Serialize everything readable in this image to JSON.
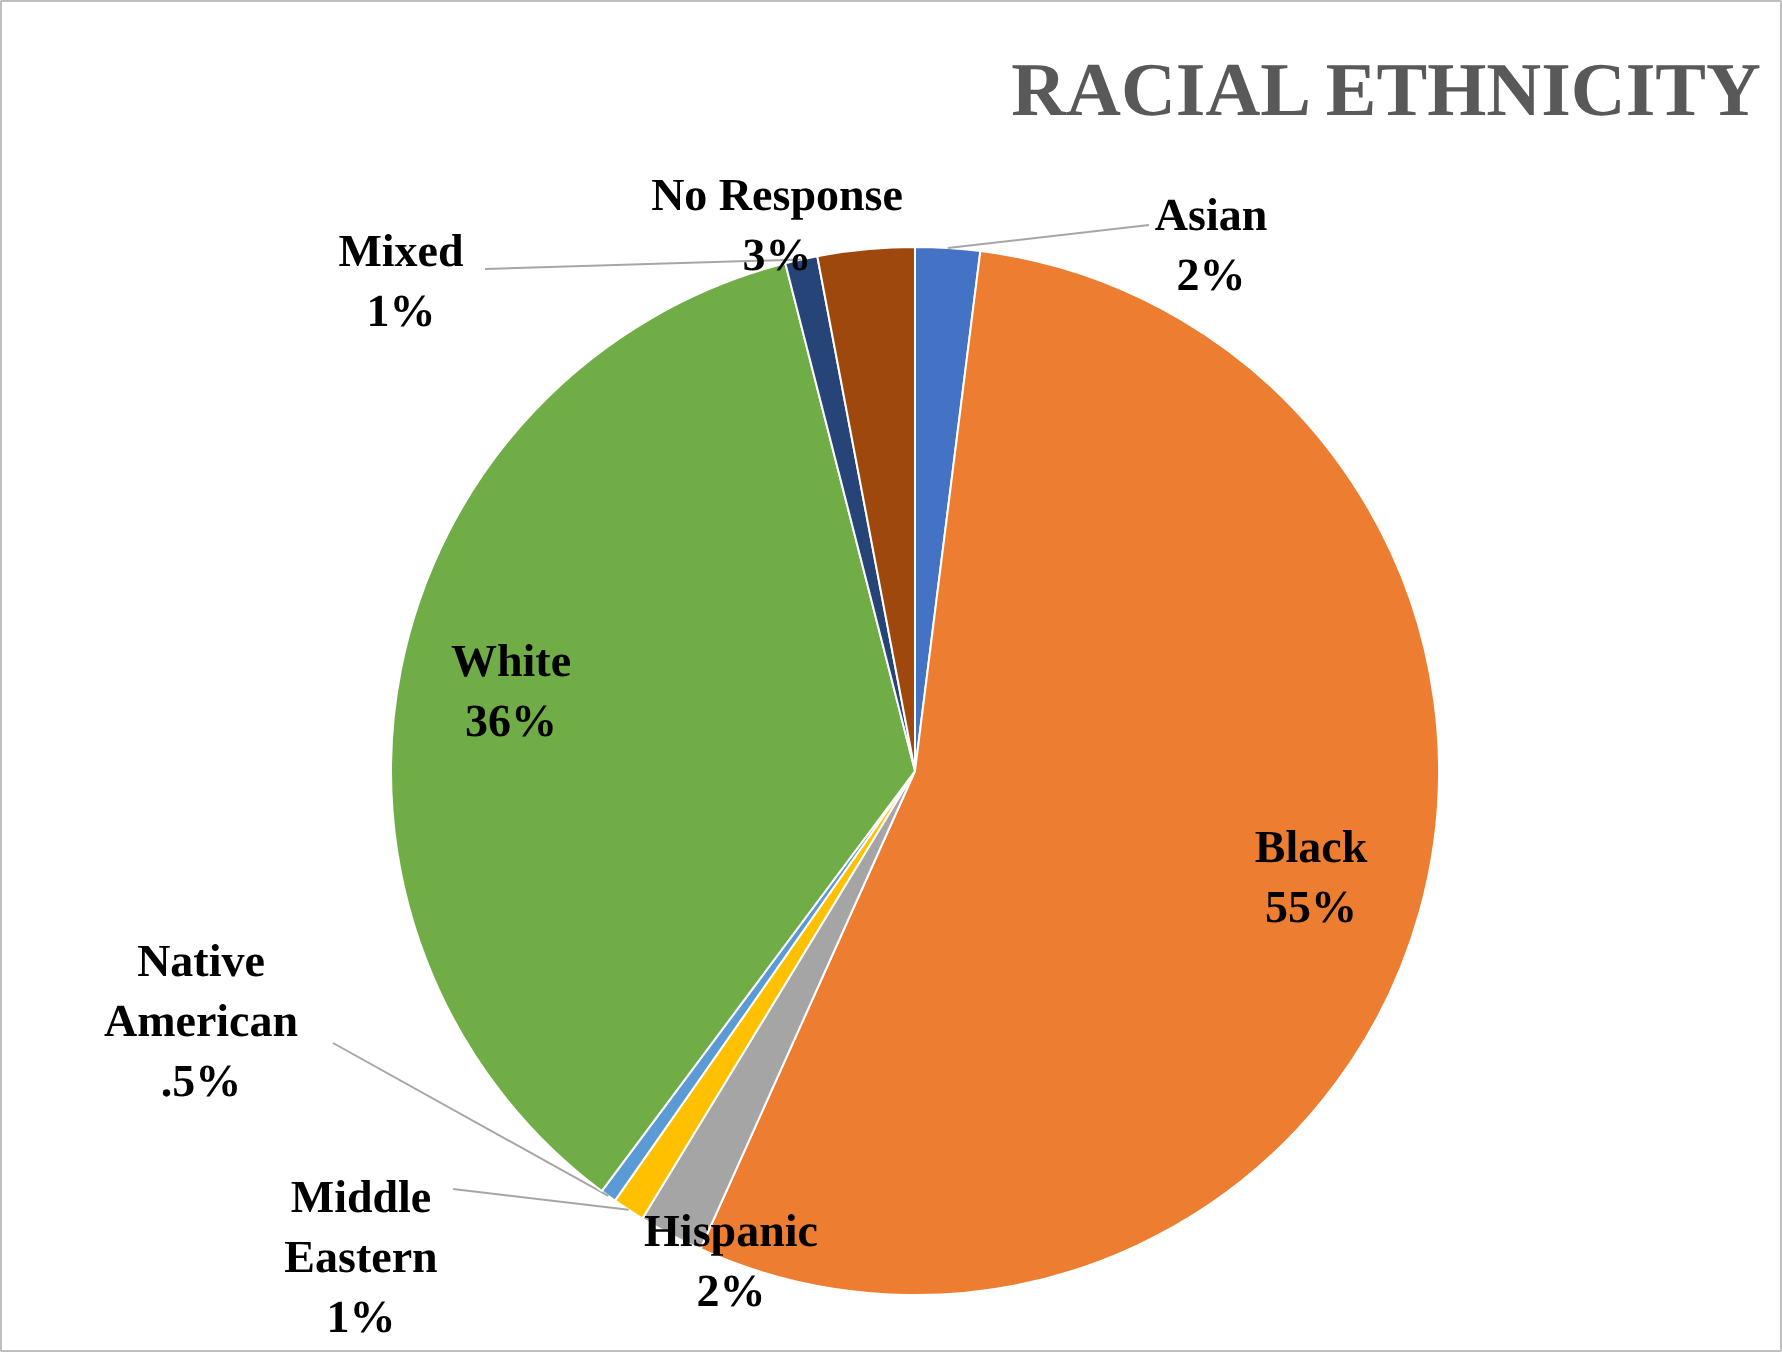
{
  "chart_data": {
    "type": "pie",
    "title": "RACIAL ETHNICITY",
    "categories": [
      "Asian",
      "Black",
      "Hispanic",
      "Middle Eastern",
      "Native American",
      "White",
      "Mixed",
      "No Response"
    ],
    "values": [
      2,
      55,
      2,
      1,
      0.5,
      36,
      1,
      3
    ],
    "value_labels": [
      "2%",
      "55%",
      "2%",
      "1%",
      ".5%",
      "36%",
      "1%",
      "3%"
    ],
    "colors": [
      "#4472c4",
      "#ed7d31",
      "#a5a5a5",
      "#ffc000",
      "#5b9bd5",
      "#70ad47",
      "#264478",
      "#9e480e"
    ]
  }
}
